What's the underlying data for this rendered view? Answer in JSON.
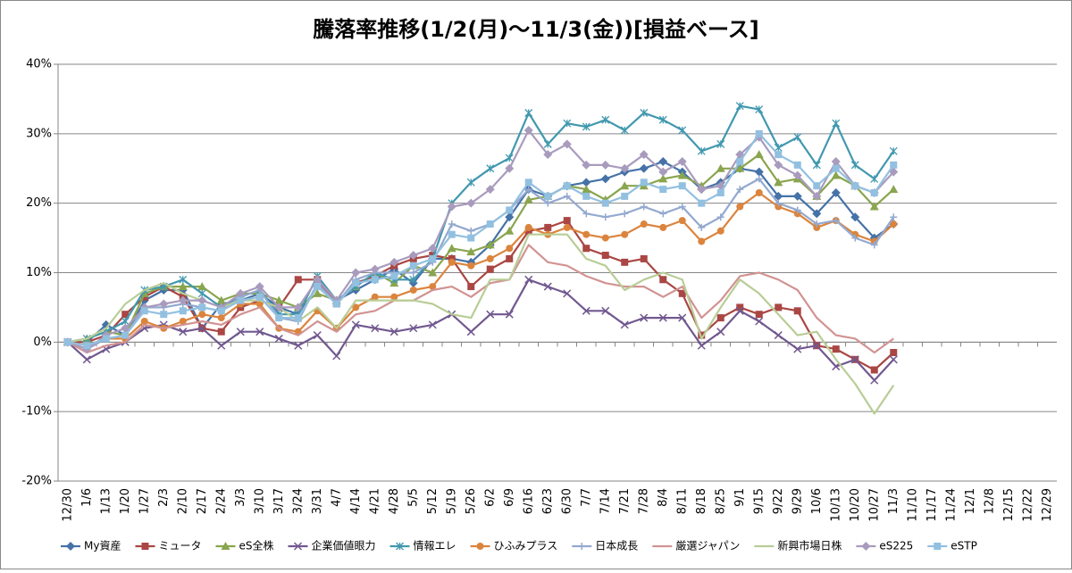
{
  "chart_data": {
    "type": "line",
    "title": "騰落率推移(1/2(月)～11/3(金))[損益ベース]",
    "categories": [
      "12/30",
      "1/6",
      "1/13",
      "1/20",
      "1/27",
      "2/3",
      "2/10",
      "2/17",
      "2/24",
      "3/3",
      "3/10",
      "3/17",
      "3/24",
      "3/31",
      "4/7",
      "4/14",
      "4/21",
      "4/28",
      "5/5",
      "5/12",
      "5/19",
      "5/26",
      "6/2",
      "6/9",
      "6/16",
      "6/23",
      "6/30",
      "7/7",
      "7/14",
      "7/21",
      "7/28",
      "8/4",
      "8/11",
      "8/18",
      "8/25",
      "9/1",
      "9/15",
      "9/22",
      "9/29",
      "10/6",
      "10/13",
      "10/20",
      "10/27",
      "11/3",
      "11/10",
      "11/17",
      "11/24",
      "12/1",
      "12/8",
      "12/15",
      "12/22",
      "12/29"
    ],
    "ylim": [
      -20,
      40
    ],
    "yticks": [
      {
        "value": -20,
        "label": "-20%"
      },
      {
        "value": -10,
        "label": "-10%"
      },
      {
        "value": 0,
        "label": "0%"
      },
      {
        "value": 10,
        "label": "10%"
      },
      {
        "value": 20,
        "label": "20%"
      },
      {
        "value": 30,
        "label": "30%"
      },
      {
        "value": 40,
        "label": "40%"
      }
    ],
    "grid": true,
    "legend": "bottom",
    "series": [
      {
        "name": "My資産",
        "color": "#4572a7",
        "marker": "diamond",
        "values": [
          0,
          0,
          2.5,
          1,
          6,
          7.5,
          7.5,
          2,
          5.5,
          6,
          7,
          5,
          4,
          8,
          6,
          7.5,
          9,
          10.5,
          8.5,
          12,
          12,
          11.5,
          14,
          18,
          22,
          21,
          22.5,
          23,
          23.5,
          24.5,
          25,
          26,
          24.5,
          22,
          23,
          25,
          24.5,
          21,
          21,
          18.5,
          21.5,
          18,
          15,
          17,
          null,
          null,
          null,
          null,
          null,
          null,
          null,
          null
        ]
      },
      {
        "name": "ミュータ",
        "color": "#aa4643",
        "marker": "square",
        "values": [
          0,
          0,
          1,
          4,
          6.5,
          8,
          6.5,
          2,
          1.5,
          5,
          6,
          5,
          9,
          9,
          5.5,
          8.5,
          9.5,
          11,
          12,
          12.5,
          12,
          8,
          10.5,
          12,
          16,
          16.5,
          17.5,
          13.5,
          12.5,
          11.5,
          12,
          9,
          7,
          1,
          3.5,
          5,
          4,
          5,
          4.5,
          -0.5,
          -1,
          -2.5,
          -4,
          -1.5,
          null,
          null,
          null,
          null,
          null,
          null,
          null,
          null
        ]
      },
      {
        "name": "eS全株",
        "color": "#89a54e",
        "marker": "triangle",
        "values": [
          0,
          0.5,
          1.5,
          1,
          7,
          8,
          8,
          8,
          6,
          7,
          7,
          6,
          5,
          7,
          6,
          8,
          10,
          8.5,
          11,
          10,
          13.5,
          13,
          14,
          16,
          20.5,
          21,
          22.5,
          22,
          20.5,
          22.5,
          22.5,
          23.5,
          24,
          22.5,
          25,
          25,
          27,
          23,
          23.5,
          21,
          24,
          22.5,
          19.5,
          22,
          null,
          null,
          null,
          null,
          null,
          null,
          null,
          null
        ]
      },
      {
        "name": "企業価値眼力",
        "color": "#71588f",
        "marker": "x",
        "values": [
          0,
          -2.5,
          -1,
          0,
          2,
          2.5,
          1.5,
          2,
          -0.5,
          1.5,
          1.5,
          0.5,
          -0.5,
          1,
          -2,
          2.5,
          2,
          1.5,
          2,
          2.5,
          4,
          1.5,
          4,
          4,
          9,
          8,
          7,
          4.5,
          4.5,
          2.5,
          3.5,
          3.5,
          3.5,
          -0.5,
          1.5,
          4.5,
          3,
          1,
          -1,
          -0.5,
          -3.5,
          -2.5,
          -5.5,
          -2.5,
          null,
          null,
          null,
          null,
          null,
          null,
          null,
          null
        ]
      },
      {
        "name": "情報エレ",
        "color": "#4198af",
        "marker": "star",
        "values": [
          0,
          0.5,
          1.5,
          3,
          7.5,
          8,
          9,
          7,
          5,
          6.5,
          7.5,
          4,
          4,
          9.5,
          6,
          8,
          10,
          9,
          9,
          12,
          20,
          23,
          25,
          26.5,
          33,
          28.5,
          31.5,
          31,
          32,
          30.5,
          33,
          32,
          30.5,
          27.5,
          28.5,
          34,
          33.5,
          28,
          29.5,
          25.5,
          31.5,
          25.5,
          23.5,
          27.5,
          null,
          null,
          null,
          null,
          null,
          null,
          null,
          null
        ]
      },
      {
        "name": "ひふみプラス",
        "color": "#db843d",
        "marker": "circle",
        "values": [
          0,
          -0.5,
          0.5,
          0.5,
          3,
          2,
          3,
          4,
          3.5,
          5.5,
          5.5,
          2,
          1.5,
          4.5,
          2,
          5,
          6.5,
          6.5,
          7.5,
          8,
          11.5,
          11,
          12,
          13.5,
          16.5,
          15.5,
          16.5,
          15.5,
          15,
          15.5,
          17,
          16.5,
          17.5,
          14.5,
          16,
          19.5,
          21.5,
          19.5,
          18.5,
          16.5,
          17.5,
          15.5,
          14.5,
          17,
          null,
          null,
          null,
          null,
          null,
          null,
          null,
          null
        ]
      },
      {
        "name": "日本成長",
        "color": "#93a9cf",
        "marker": "plus",
        "values": [
          0,
          -1,
          0.5,
          1,
          5,
          5,
          5.5,
          5,
          4.5,
          6.5,
          7.5,
          3.5,
          3,
          8.5,
          5.5,
          9,
          10,
          10,
          10,
          11.5,
          17,
          16,
          17,
          19,
          22,
          20,
          21,
          18.5,
          18,
          18.5,
          19.5,
          18.5,
          19.5,
          16.5,
          18,
          22,
          23.5,
          20,
          19,
          17,
          17.5,
          15,
          14,
          18,
          null,
          null,
          null,
          null,
          null,
          null,
          null,
          null
        ]
      },
      {
        "name": "厳選ジャパン",
        "color": "#d19392",
        "marker": "none",
        "values": [
          0,
          -1.5,
          -0.5,
          0,
          2.5,
          2,
          2.5,
          3,
          2.5,
          4,
          5,
          2,
          1,
          3,
          1.5,
          4,
          4.5,
          6,
          6,
          7.5,
          8,
          6.5,
          8.5,
          9,
          14,
          11.5,
          11,
          9.5,
          8.5,
          8,
          8,
          6.5,
          8,
          3.5,
          6,
          9.5,
          10,
          9,
          7.5,
          3.5,
          1,
          0.5,
          -1.5,
          0.5,
          null,
          null,
          null,
          null,
          null,
          null,
          null,
          null
        ]
      },
      {
        "name": "新興市場日株",
        "color": "#b9cd96",
        "marker": "none",
        "values": [
          0,
          0.5,
          2,
          5.5,
          7.5,
          8.5,
          7,
          6,
          5,
          6,
          6,
          5,
          3,
          5,
          2,
          6,
          6,
          6,
          6,
          5.5,
          4,
          3.5,
          9,
          9,
          15.5,
          15.5,
          15.5,
          12,
          11,
          7.5,
          9,
          10,
          9,
          0.5,
          5,
          9,
          7,
          4,
          1,
          1.5,
          -2.5,
          -6,
          -10.3,
          -6.2,
          null,
          null,
          null,
          null,
          null,
          null,
          null,
          null
        ]
      },
      {
        "name": "eS225",
        "color": "#a99bbd",
        "marker": "diamond",
        "values": [
          0,
          -1,
          1,
          2,
          5,
          5.5,
          6,
          6,
          5,
          7,
          8,
          5,
          5,
          9,
          6,
          10,
          10.5,
          11.5,
          12.5,
          13.5,
          19.5,
          20,
          22,
          25,
          30.5,
          27,
          28.5,
          25.5,
          25.5,
          25,
          27,
          24.5,
          26,
          22,
          22.5,
          27,
          29.5,
          25.5,
          24,
          21,
          26,
          22.5,
          21.5,
          24.5,
          null,
          null,
          null,
          null,
          null,
          null,
          null,
          null
        ]
      },
      {
        "name": "eSTP",
        "color": "#92c0e0",
        "marker": "square",
        "values": [
          0,
          -0.5,
          0.5,
          1,
          4.5,
          4,
          4.5,
          5,
          4.5,
          6,
          6.5,
          3.5,
          3.5,
          8,
          5.5,
          8.5,
          9,
          9.5,
          11,
          12,
          15.5,
          15,
          17,
          19,
          23,
          21,
          22.5,
          21,
          20,
          21,
          23,
          22,
          22.5,
          20,
          21.5,
          26,
          30,
          27,
          25.5,
          22.5,
          25,
          22.5,
          21.5,
          25.5,
          null,
          null,
          null,
          null,
          null,
          null,
          null,
          null
        ]
      }
    ]
  }
}
